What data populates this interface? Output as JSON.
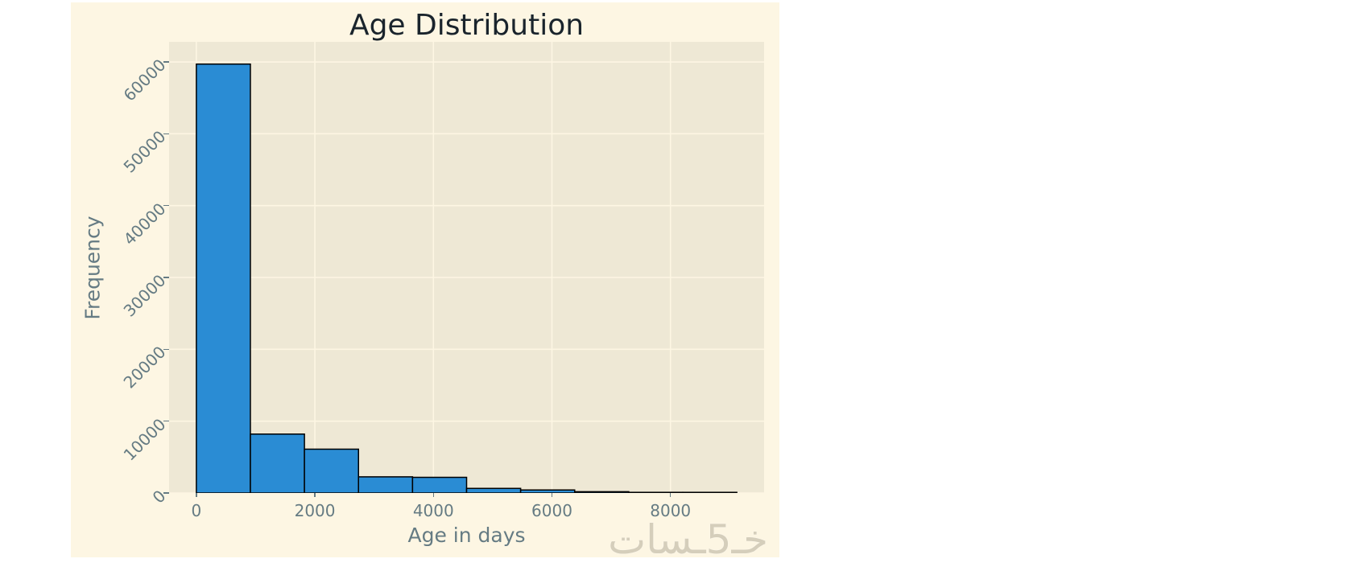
{
  "chart_data": {
    "type": "bar",
    "subtype": "histogram",
    "title": "Age Distribution",
    "xlabel": "Age in days",
    "ylabel": "Frequency",
    "bins": [
      0,
      912,
      1824,
      2736,
      3648,
      4560,
      5472,
      6384,
      7296,
      8208,
      9120
    ],
    "values": [
      59700,
      8200,
      6100,
      2250,
      2180,
      640,
      420,
      180,
      45,
      25
    ],
    "x_ticks": [
      0,
      2000,
      4000,
      6000,
      8000
    ],
    "x_tick_labels": [
      "0",
      "2000",
      "4000",
      "6000",
      "8000"
    ],
    "y_ticks": [
      0,
      10000,
      20000,
      30000,
      40000,
      50000,
      60000
    ],
    "y_tick_labels": [
      "0",
      "10000",
      "20000",
      "30000",
      "40000",
      "50000",
      "60000"
    ],
    "xlim": [
      -460,
      9580
    ],
    "ylim": [
      0,
      62800
    ],
    "grid": true,
    "legend": null,
    "colors": {
      "figure_background": "#fdf6e3",
      "axes_background": "#eee8d5",
      "gridline": "#fdf6e3",
      "bar_fill": "#2a8cd4",
      "bar_edge": "#000000",
      "tick_text": "#657b83",
      "title_text": "#1a242c",
      "watermark_text": "#d5cebb"
    }
  },
  "watermark": {
    "text": "خـ5ـسات"
  }
}
